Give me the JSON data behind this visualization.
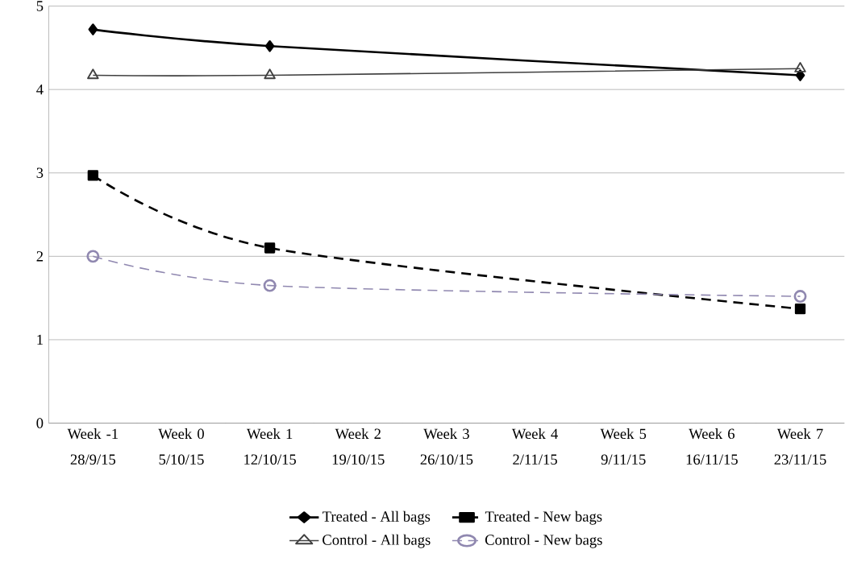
{
  "chart_data": {
    "type": "line",
    "categories": [
      "Week -1 28/9/15",
      "Week 0 5/10/15",
      "Week 1 12/10/15",
      "Week 2 19/10/15",
      "Week 3 26/10/15",
      "Week 4 2/11/15",
      "Week 5 9/11/15",
      "Week 6 16/11/15",
      "Week 7 23/11/15"
    ],
    "series": [
      {
        "name": "Treated -  All bags",
        "color": "#000000",
        "marker": "diamond",
        "line_style": "solid",
        "values": [
          4.72,
          null,
          4.52,
          null,
          null,
          null,
          null,
          null,
          4.17
        ]
      },
      {
        "name": "Treated -  New bags",
        "color": "#000000",
        "marker": "square",
        "line_style": "dashed",
        "values": [
          2.97,
          null,
          2.1,
          null,
          null,
          null,
          null,
          null,
          1.37
        ]
      },
      {
        "name": "Control -  All bags",
        "color": "#404040",
        "marker": "triangle",
        "line_style": "solid",
        "values": [
          4.17,
          null,
          4.17,
          null,
          null,
          null,
          null,
          null,
          4.25
        ]
      },
      {
        "name": "Control -  New bags",
        "color": "#9088b0",
        "marker": "circle",
        "line_style": "dashed",
        "values": [
          2.0,
          null,
          1.65,
          null,
          null,
          null,
          null,
          null,
          1.52
        ]
      }
    ],
    "ylim": [
      0,
      5
    ],
    "yticks": [
      0,
      1,
      2,
      3,
      4,
      5
    ],
    "grid": "y",
    "legend": "bottom"
  }
}
